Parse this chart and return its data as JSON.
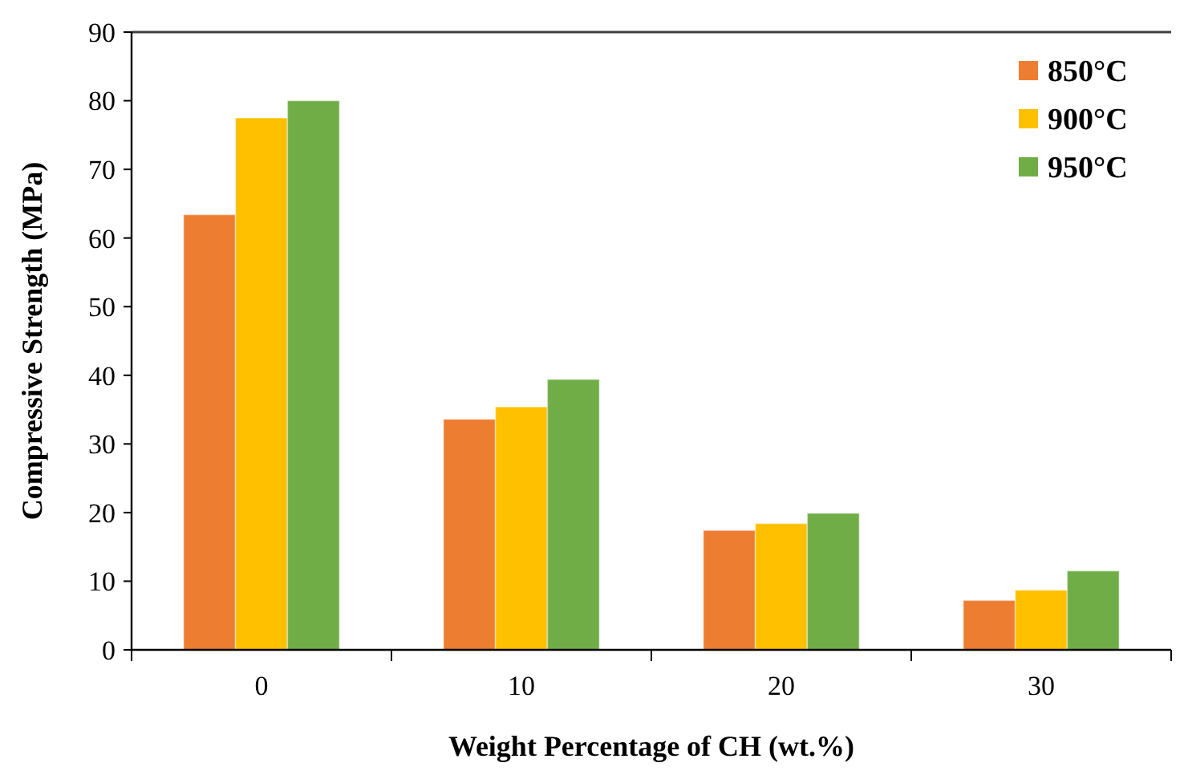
{
  "chart_data": {
    "type": "bar",
    "xlabel": "Weight Percentage of CH (wt.%)",
    "ylabel": "Compressive Strength (MPa)",
    "categories": [
      "0",
      "10",
      "20",
      "30"
    ],
    "series": [
      {
        "name": "850°C",
        "color": "#ed7d31",
        "values": [
          63.4,
          33.6,
          17.4,
          7.2
        ]
      },
      {
        "name": "900°C",
        "color": "#ffc000",
        "values": [
          77.5,
          35.4,
          18.4,
          8.7
        ]
      },
      {
        "name": "950°C",
        "color": "#70ad47",
        "values": [
          80.0,
          39.4,
          19.9,
          11.5
        ]
      }
    ],
    "ylim": [
      0,
      90
    ],
    "yticks": [
      0,
      10,
      20,
      30,
      40,
      50,
      60,
      70,
      80,
      90
    ],
    "grid": false,
    "legend": "top right"
  }
}
